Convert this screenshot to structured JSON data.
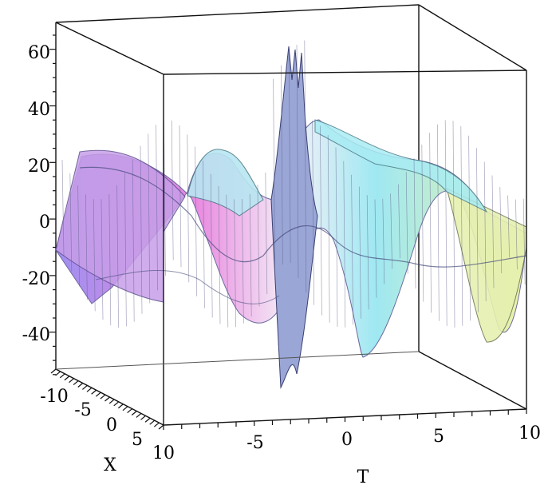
{
  "chart_data": {
    "type": "surface3d",
    "title": "",
    "axes": {
      "x": {
        "label": "X",
        "ticks": [
          "-10",
          "-5",
          "0",
          "5",
          "10"
        ],
        "range": [
          -10,
          10
        ]
      },
      "t": {
        "label": "T",
        "ticks": [
          "-5",
          "0",
          "5",
          "10"
        ],
        "range": [
          -10,
          10
        ]
      },
      "z": {
        "label": "",
        "ticks": [
          "60",
          "40",
          "20",
          "0",
          "-20",
          "-40"
        ],
        "range": [
          -50,
          70
        ]
      }
    },
    "box": true,
    "colormap": [
      "#9f8ef0",
      "#e98be0",
      "#f4f4f7",
      "#9fe8f2",
      "#eef2a6"
    ]
  }
}
